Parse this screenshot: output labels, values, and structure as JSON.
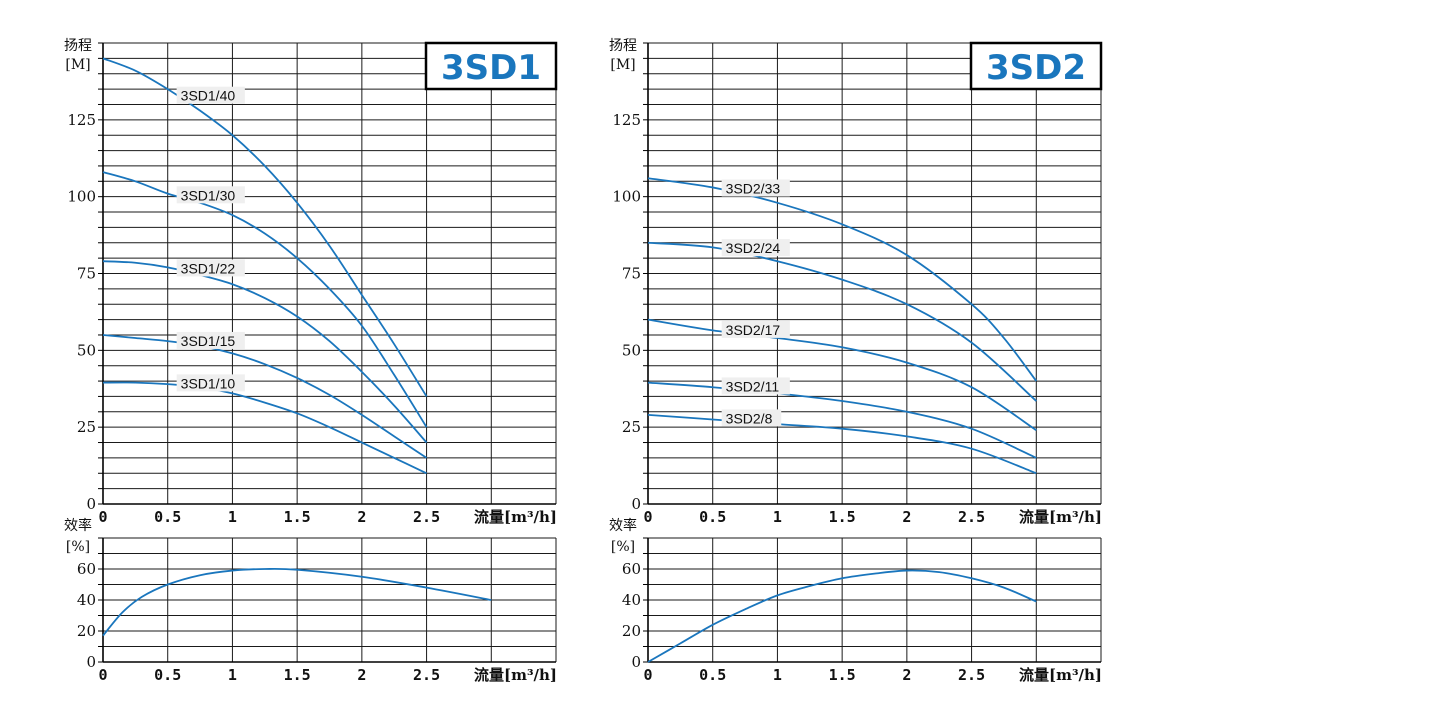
{
  "panels": [
    {
      "badge": "3SD1",
      "head_ylabel_line1": "扬程",
      "head_ylabel_line2": "[M]",
      "eff_ylabel_line1": "效率",
      "eff_ylabel_line2": "[%]",
      "xlabel": "流量[m³/h]",
      "x_tick_labels": [
        "0",
        "0.5",
        "1",
        "1.5",
        "2",
        "2.5"
      ],
      "head_tick_labels": [
        "0",
        "25",
        "50",
        "75",
        "100",
        "125"
      ],
      "eff_tick_labels": [
        "0",
        "20",
        "40",
        "60"
      ],
      "head_curves": [
        {
          "name": "3SD1/40",
          "label_at_x": 0.6,
          "points": [
            [
              0,
              145
            ],
            [
              0.25,
              141
            ],
            [
              0.5,
              135
            ],
            [
              0.75,
              128
            ],
            [
              1,
              120
            ],
            [
              1.25,
              110
            ],
            [
              1.5,
              98
            ],
            [
              1.75,
              84
            ],
            [
              2,
              68
            ],
            [
              2.25,
              52
            ],
            [
              2.5,
              35
            ]
          ]
        },
        {
          "name": "3SD1/30",
          "label_at_x": 0.6,
          "points": [
            [
              0,
              108
            ],
            [
              0.25,
              105
            ],
            [
              0.5,
              101
            ],
            [
              0.75,
              98
            ],
            [
              1,
              94
            ],
            [
              1.25,
              88
            ],
            [
              1.5,
              80
            ],
            [
              1.75,
              70
            ],
            [
              2,
              58
            ],
            [
              2.25,
              42
            ],
            [
              2.5,
              25
            ]
          ]
        },
        {
          "name": "3SD1/22",
          "label_at_x": 0.6,
          "points": [
            [
              0,
              79
            ],
            [
              0.25,
              78.5
            ],
            [
              0.5,
              77
            ],
            [
              0.75,
              74.5
            ],
            [
              1,
              71.5
            ],
            [
              1.25,
              67
            ],
            [
              1.5,
              61
            ],
            [
              1.75,
              53
            ],
            [
              2,
              43
            ],
            [
              2.25,
              32
            ],
            [
              2.5,
              20
            ]
          ]
        },
        {
          "name": "3SD1/15",
          "label_at_x": 0.6,
          "points": [
            [
              0,
              55
            ],
            [
              0.25,
              54
            ],
            [
              0.5,
              53
            ],
            [
              0.75,
              51.5
            ],
            [
              1,
              49
            ],
            [
              1.25,
              45.5
            ],
            [
              1.5,
              41
            ],
            [
              1.75,
              35.5
            ],
            [
              2,
              29
            ],
            [
              2.25,
              22
            ],
            [
              2.5,
              15
            ]
          ]
        },
        {
          "name": "3SD1/10",
          "label_at_x": 0.6,
          "points": [
            [
              0,
              39.5
            ],
            [
              0.25,
              39.5
            ],
            [
              0.5,
              39
            ],
            [
              0.75,
              38
            ],
            [
              1,
              36
            ],
            [
              1.25,
              33
            ],
            [
              1.5,
              29.5
            ],
            [
              1.75,
              25
            ],
            [
              2,
              20
            ],
            [
              2.25,
              15
            ],
            [
              2.5,
              10
            ]
          ]
        }
      ],
      "efficiency_curve": [
        [
          0,
          17
        ],
        [
          0.15,
          32
        ],
        [
          0.3,
          42
        ],
        [
          0.5,
          50
        ],
        [
          0.75,
          56
        ],
        [
          1,
          59
        ],
        [
          1.25,
          60
        ],
        [
          1.5,
          59.5
        ],
        [
          2,
          55
        ],
        [
          2.5,
          48
        ],
        [
          3,
          40
        ]
      ]
    },
    {
      "badge": "3SD2",
      "head_ylabel_line1": "扬程",
      "head_ylabel_line2": "[M]",
      "eff_ylabel_line1": "效率",
      "eff_ylabel_line2": "[%]",
      "xlabel": "流量[m³/h]",
      "x_tick_labels": [
        "0",
        "0.5",
        "1",
        "1.5",
        "2",
        "2.5"
      ],
      "head_tick_labels": [
        "0",
        "25",
        "50",
        "75",
        "100",
        "125"
      ],
      "eff_tick_labels": [
        "0",
        "20",
        "40",
        "60"
      ],
      "head_curves": [
        {
          "name": "3SD2/33",
          "label_at_x": 0.6,
          "points": [
            [
              0,
              106
            ],
            [
              0.5,
              103
            ],
            [
              1,
              98
            ],
            [
              1.5,
              91
            ],
            [
              2,
              81
            ],
            [
              2.5,
              65
            ],
            [
              2.75,
              54
            ],
            [
              3,
              40
            ]
          ]
        },
        {
          "name": "3SD2/24",
          "label_at_x": 0.6,
          "points": [
            [
              0,
              85
            ],
            [
              0.5,
              83.5
            ],
            [
              1,
              79
            ],
            [
              1.5,
              73
            ],
            [
              2,
              65
            ],
            [
              2.5,
              52.5
            ],
            [
              3,
              33.5
            ]
          ]
        },
        {
          "name": "3SD2/17",
          "label_at_x": 0.6,
          "points": [
            [
              0,
              60
            ],
            [
              0.5,
              56.5
            ],
            [
              1,
              54
            ],
            [
              1.5,
              51
            ],
            [
              2,
              46
            ],
            [
              2.5,
              38
            ],
            [
              3,
              24
            ]
          ]
        },
        {
          "name": "3SD2/11",
          "label_at_x": 0.6,
          "points": [
            [
              0,
              39.5
            ],
            [
              0.5,
              38
            ],
            [
              1,
              36
            ],
            [
              1.5,
              33.5
            ],
            [
              2,
              30
            ],
            [
              2.5,
              24.5
            ],
            [
              3,
              15
            ]
          ]
        },
        {
          "name": "3SD2/8",
          "label_at_x": 0.6,
          "points": [
            [
              0,
              29
            ],
            [
              0.5,
              27.5
            ],
            [
              1,
              26
            ],
            [
              1.5,
              24.5
            ],
            [
              2,
              22
            ],
            [
              2.5,
              18
            ],
            [
              3,
              10
            ]
          ]
        }
      ],
      "efficiency_curve": [
        [
          0,
          0
        ],
        [
          0.25,
          12
        ],
        [
          0.5,
          24
        ],
        [
          0.75,
          34
        ],
        [
          1,
          43
        ],
        [
          1.25,
          49
        ],
        [
          1.5,
          54
        ],
        [
          1.75,
          57
        ],
        [
          2,
          59
        ],
        [
          2.25,
          58
        ],
        [
          2.5,
          54
        ],
        [
          2.75,
          48
        ],
        [
          3,
          39
        ]
      ]
    }
  ],
  "chart_data": [
    {
      "type": "line",
      "title": "3SD1",
      "xlabel": "流量[m³/h]",
      "ylabel": "扬程 [M]",
      "xlim": [
        0,
        3.5
      ],
      "ylim": [
        0,
        145
      ],
      "grid": true,
      "series": [
        {
          "name": "3SD1/40",
          "x": [
            0,
            0.25,
            0.5,
            0.75,
            1,
            1.25,
            1.5,
            1.75,
            2,
            2.25,
            2.5
          ],
          "y": [
            145,
            141,
            135,
            128,
            120,
            110,
            98,
            84,
            68,
            52,
            35
          ]
        },
        {
          "name": "3SD1/30",
          "x": [
            0,
            0.25,
            0.5,
            0.75,
            1,
            1.25,
            1.5,
            1.75,
            2,
            2.25,
            2.5
          ],
          "y": [
            108,
            105,
            101,
            98,
            94,
            88,
            80,
            70,
            58,
            42,
            25
          ]
        },
        {
          "name": "3SD1/22",
          "x": [
            0,
            0.25,
            0.5,
            0.75,
            1,
            1.25,
            1.5,
            1.75,
            2,
            2.25,
            2.5
          ],
          "y": [
            79,
            78.5,
            77,
            74.5,
            71.5,
            67,
            61,
            53,
            43,
            32,
            20
          ]
        },
        {
          "name": "3SD1/15",
          "x": [
            0,
            0.25,
            0.5,
            0.75,
            1,
            1.25,
            1.5,
            1.75,
            2,
            2.25,
            2.5
          ],
          "y": [
            55,
            54,
            53,
            51.5,
            49,
            45.5,
            41,
            35.5,
            29,
            22,
            15
          ]
        },
        {
          "name": "3SD1/10",
          "x": [
            0,
            0.25,
            0.5,
            0.75,
            1,
            1.25,
            1.5,
            1.75,
            2,
            2.25,
            2.5
          ],
          "y": [
            39.5,
            39.5,
            39,
            38,
            36,
            33,
            29.5,
            25,
            20,
            15,
            10
          ]
        }
      ]
    },
    {
      "type": "line",
      "xlabel": "流量[m³/h]",
      "ylabel": "效率 [%]",
      "xlim": [
        0,
        3.5
      ],
      "ylim": [
        0,
        70
      ],
      "grid": true,
      "series": [
        {
          "x": [
            0,
            0.15,
            0.3,
            0.5,
            0.75,
            1,
            1.25,
            1.5,
            2,
            2.5,
            3
          ],
          "y": [
            17,
            32,
            42,
            50,
            56,
            59,
            60,
            59.5,
            55,
            48,
            40
          ]
        }
      ]
    },
    {
      "type": "line",
      "title": "3SD2",
      "xlabel": "流量[m³/h]",
      "ylabel": "扬程 [M]",
      "xlim": [
        0,
        3.5
      ],
      "ylim": [
        0,
        145
      ],
      "grid": true,
      "series": [
        {
          "name": "3SD2/33",
          "x": [
            0,
            0.5,
            1,
            1.5,
            2,
            2.5,
            2.75,
            3
          ],
          "y": [
            106,
            103,
            98,
            91,
            81,
            65,
            54,
            40
          ]
        },
        {
          "name": "3SD2/24",
          "x": [
            0,
            0.5,
            1,
            1.5,
            2,
            2.5,
            3
          ],
          "y": [
            85,
            83.5,
            79,
            73,
            65,
            52.5,
            33.5
          ]
        },
        {
          "name": "3SD2/17",
          "x": [
            0,
            0.5,
            1,
            1.5,
            2,
            2.5,
            3
          ],
          "y": [
            60,
            56.5,
            54,
            51,
            46,
            38,
            24
          ]
        },
        {
          "name": "3SD2/11",
          "x": [
            0,
            0.5,
            1,
            1.5,
            2,
            2.5,
            3
          ],
          "y": [
            39.5,
            38,
            36,
            33.5,
            30,
            24.5,
            15
          ]
        },
        {
          "name": "3SD2/8",
          "x": [
            0,
            0.5,
            1,
            1.5,
            2,
            2.5,
            3
          ],
          "y": [
            29,
            27.5,
            26,
            24.5,
            22,
            18,
            10
          ]
        }
      ]
    },
    {
      "type": "line",
      "xlabel": "流量[m³/h]",
      "ylabel": "效率 [%]",
      "xlim": [
        0,
        3.5
      ],
      "ylim": [
        0,
        70
      ],
      "grid": true,
      "series": [
        {
          "x": [
            0,
            0.25,
            0.5,
            0.75,
            1,
            1.25,
            1.5,
            1.75,
            2,
            2.25,
            2.5,
            2.75,
            3
          ],
          "y": [
            0,
            12,
            24,
            34,
            43,
            49,
            54,
            57,
            59,
            58,
            54,
            48,
            39
          ]
        }
      ]
    }
  ]
}
